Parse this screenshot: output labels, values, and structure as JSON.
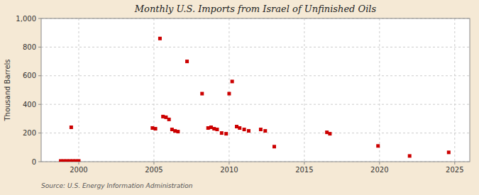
{
  "chart_data": {
    "type": "scatter",
    "title": "Monthly U.S. Imports from Israel of Unfinished Oils",
    "ylabel": "Thousand Barrels",
    "source": "Source: U.S. Energy Information Administration",
    "x": [
      1998.8,
      1999.0,
      1999.2,
      1999.4,
      1999.6,
      1999.8,
      2000.0,
      1999.5,
      2004.9,
      2005.1,
      2005.4,
      2005.6,
      2005.8,
      2006.0,
      2006.2,
      2006.4,
      2006.6,
      2007.2,
      2008.2,
      2008.6,
      2008.8,
      2009.0,
      2009.2,
      2009.5,
      2009.8,
      2010.0,
      2010.2,
      2010.5,
      2010.7,
      2011.0,
      2011.3,
      2012.1,
      2012.4,
      2013.0,
      2016.5,
      2016.7,
      2019.9,
      2022.0,
      2024.6
    ],
    "values": [
      5,
      5,
      5,
      5,
      5,
      5,
      5,
      240,
      235,
      230,
      860,
      315,
      310,
      295,
      225,
      215,
      210,
      700,
      475,
      235,
      240,
      230,
      225,
      200,
      195,
      475,
      560,
      245,
      235,
      225,
      215,
      225,
      215,
      105,
      205,
      195,
      110,
      40,
      65
    ],
    "xlim": [
      1997.5,
      2026
    ],
    "ylim": [
      0,
      1000
    ],
    "xticks": [
      2000,
      2005,
      2010,
      2015,
      2020,
      2025
    ],
    "yticks": [
      0,
      200,
      400,
      600,
      800,
      {
        "value": 1000,
        "label": "1,000"
      }
    ],
    "color": "#cc0000",
    "marker": "square",
    "grid": true
  }
}
